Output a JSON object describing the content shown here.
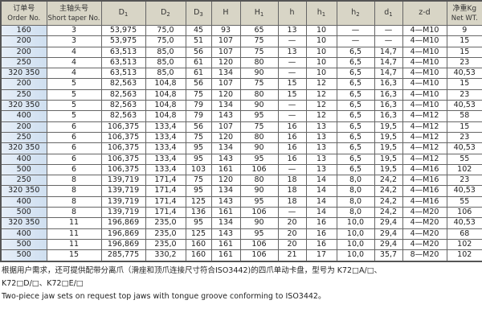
{
  "table": {
    "headers": [
      {
        "cn": "订单号",
        "en": "Order No."
      },
      {
        "cn": "主轴头号",
        "en": "Short taper No."
      },
      {
        "main": "D",
        "sub": "1"
      },
      {
        "main": "D",
        "sub": "2"
      },
      {
        "main": "D",
        "sub": "3"
      },
      {
        "main": "H",
        "sub": ""
      },
      {
        "main": "H",
        "sub": "1"
      },
      {
        "main": "h",
        "sub": ""
      },
      {
        "main": "h",
        "sub": "1"
      },
      {
        "main": "h",
        "sub": "2"
      },
      {
        "main": "d",
        "sub": "1"
      },
      {
        "main": "z-d",
        "sub": ""
      },
      {
        "cn": "净重Kg",
        "en": "Net WT."
      }
    ],
    "rows": [
      [
        "160",
        "3",
        "53,975",
        "75,0",
        "45",
        "93",
        "65",
        "13",
        "10",
        "—",
        "—",
        "4—M10",
        "9"
      ],
      [
        "200",
        "3",
        "53,975",
        "75,0",
        "51",
        "107",
        "75",
        "—",
        "10",
        "—",
        "—",
        "4—M10",
        "15"
      ],
      [
        "200",
        "4",
        "63,513",
        "85,0",
        "56",
        "107",
        "75",
        "13",
        "10",
        "6,5",
        "14,7",
        "4—M10",
        "15"
      ],
      [
        "250",
        "4",
        "63,513",
        "85,0",
        "61",
        "120",
        "80",
        "—",
        "10",
        "6,5",
        "14,7",
        "4—M10",
        "23"
      ],
      [
        "320 350",
        "4",
        "63,513",
        "85,0",
        "61",
        "134",
        "90",
        "—",
        "10",
        "6,5",
        "14,7",
        "4—M10",
        "40,53"
      ],
      [
        "200",
        "5",
        "82,563",
        "104,8",
        "56",
        "107",
        "75",
        "15",
        "12",
        "6,5",
        "16,3",
        "4—M10",
        "15"
      ],
      [
        "250",
        "5",
        "82,563",
        "104,8",
        "75",
        "120",
        "80",
        "15",
        "12",
        "6,5",
        "16,3",
        "4—M10",
        "23"
      ],
      [
        "320 350",
        "5",
        "82,563",
        "104,8",
        "79",
        "134",
        "90",
        "—",
        "12",
        "6,5",
        "16,3",
        "4—M10",
        "40,53"
      ],
      [
        "400",
        "5",
        "82,563",
        "104,8",
        "79",
        "143",
        "95",
        "—",
        "12",
        "6,5",
        "16,3",
        "4—M12",
        "58"
      ],
      [
        "200",
        "6",
        "106,375",
        "133,4",
        "56",
        "107",
        "75",
        "16",
        "13",
        "6,5",
        "19,5",
        "4—M12",
        "15"
      ],
      [
        "250",
        "6",
        "106,375",
        "133,4",
        "75",
        "120",
        "80",
        "16",
        "13",
        "6,5",
        "19,5",
        "4—M12",
        "23"
      ],
      [
        "320 350",
        "6",
        "106,375",
        "133,4",
        "95",
        "134",
        "90",
        "16",
        "13",
        "6,5",
        "19,5",
        "4—M12",
        "40,53"
      ],
      [
        "400",
        "6",
        "106,375",
        "133,4",
        "95",
        "143",
        "95",
        "16",
        "13",
        "6,5",
        "19,5",
        "4—M12",
        "55"
      ],
      [
        "500",
        "6",
        "106,375",
        "133,4",
        "103",
        "161",
        "106",
        "—",
        "13",
        "6,5",
        "19,5",
        "4—M16",
        "102"
      ],
      [
        "250",
        "8",
        "139,719",
        "171,4",
        "75",
        "120",
        "80",
        "18",
        "14",
        "8,0",
        "24,2",
        "4—M16",
        "23"
      ],
      [
        "320 350",
        "8",
        "139,719",
        "171,4",
        "95",
        "134",
        "90",
        "18",
        "14",
        "8,0",
        "24,2",
        "4—M16",
        "40,53"
      ],
      [
        "400",
        "8",
        "139,719",
        "171,4",
        "125",
        "143",
        "95",
        "18",
        "14",
        "8,0",
        "24,2",
        "4—M16",
        "55"
      ],
      [
        "500",
        "8",
        "139,719",
        "171,4",
        "136",
        "161",
        "106",
        "—",
        "14",
        "8,0",
        "24,2",
        "4—M20",
        "106"
      ],
      [
        "320 350",
        "11",
        "196,869",
        "235,0",
        "95",
        "134",
        "90",
        "20",
        "16",
        "10,0",
        "29,4",
        "4—M20",
        "40,53"
      ],
      [
        "400",
        "11",
        "196,869",
        "235,0",
        "125",
        "143",
        "95",
        "20",
        "16",
        "10,0",
        "29,4",
        "4—M20",
        "68"
      ],
      [
        "500",
        "11",
        "196,869",
        "235,0",
        "160",
        "161",
        "106",
        "20",
        "16",
        "10,0",
        "29,4",
        "4—M20",
        "102"
      ],
      [
        "500",
        "15",
        "285,775",
        "330,2",
        "160",
        "161",
        "106",
        "21",
        "17",
        "10,0",
        "35,7",
        "8—M20",
        "102"
      ]
    ]
  },
  "notes": {
    "cn_line1": "根据用户需求，还可提供配带分离爪（滑座和顶爪连接尺寸符合ISO3442)的四爪单动卡盘，型号为  K72□A/□、",
    "cn_line2": "K72□D/□、K72□E/□",
    "en": "Two-piece jaw sets on request top jaws with tongue groove conforming to ISO3442。"
  },
  "colors": {
    "header_bg": "#d8d5c6",
    "order_col_bg": "#dde8f4",
    "border": "#666666"
  }
}
